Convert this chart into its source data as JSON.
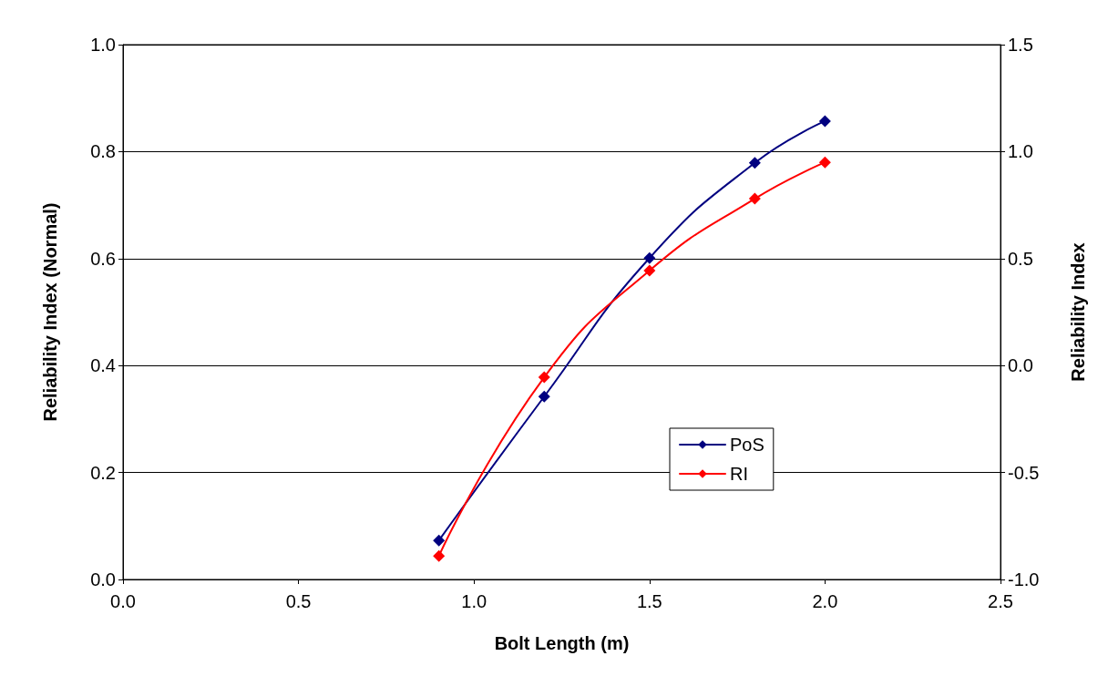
{
  "chart_data": {
    "type": "line",
    "xlabel": "Bolt Length (m)",
    "ylabel": "Reliability Index (Normal)",
    "y2label": "Reliability Index",
    "x": [
      0.9,
      1.2,
      1.5,
      1.8,
      2.0
    ],
    "series": [
      {
        "name": "PoS",
        "color": "#000080",
        "values": [
          0.073,
          0.342,
          0.601,
          0.779,
          0.857
        ]
      },
      {
        "name": "RI",
        "color": "#ff0000",
        "axis": "y2",
        "values": [
          -0.89,
          -0.055,
          0.444,
          0.78,
          0.95
        ]
      }
    ],
    "xlim": [
      0,
      2.5
    ],
    "xticks": [
      {
        "value": 0,
        "label": "0.0"
      },
      0.5,
      {
        "value": 1,
        "label": "1.0"
      },
      1.5,
      {
        "value": 2,
        "label": "2.0"
      },
      2.5
    ],
    "ylim": [
      0,
      1
    ],
    "yticks": [
      {
        "value": 0,
        "label": "0.0"
      },
      0.2,
      0.4,
      0.6,
      0.8,
      {
        "value": 1,
        "label": "1.0"
      }
    ],
    "y2lim": [
      -1,
      1.5
    ],
    "y2ticks": [
      {
        "value": -1,
        "label": "-1.0"
      },
      -0.5,
      {
        "value": 0,
        "label": "0.0"
      },
      0.5,
      {
        "value": 1,
        "label": "1.0"
      },
      1.5
    ],
    "grid": "y",
    "legend": "bottom right",
    "marker": "diamond",
    "line_style": "solid"
  }
}
